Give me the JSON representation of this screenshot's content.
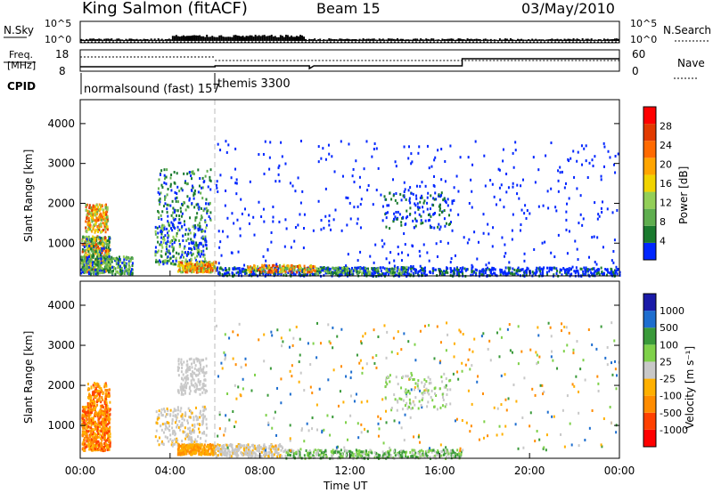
{
  "header": {
    "station": "King Salmon (fitACF)",
    "beam": "Beam 15",
    "date": "03/May/2010"
  },
  "top_panels": {
    "nsky_label": "N.Sky",
    "nsky_ticks": [
      "10^5",
      "10^0"
    ],
    "nsearch_label": "N.Search",
    "freq_label_1": "Freq.",
    "freq_label_2": "[MHz]",
    "freq_ticks": [
      "18",
      "8"
    ],
    "nave_label": "Nave",
    "nave_ticks": [
      "60",
      "0"
    ],
    "cpid_label": "CPID",
    "cpid_segments": [
      {
        "name": "normalsound (fast) 157",
        "start_hour": 0,
        "end_hour": 6
      },
      {
        "name": "themis 3300",
        "start_hour": 6,
        "end_hour": 24
      }
    ]
  },
  "colors": {
    "power_scale": [
      "#0026ff",
      "#1a7a2e",
      "#5fae4f",
      "#93cf58",
      "#f1d300",
      "#ffa500",
      "#ff6a00",
      "#e23a00",
      "#ff0000"
    ],
    "velocity_scale": [
      "#ff0000",
      "#ff4000",
      "#ff8c00",
      "#ffb000",
      "#c8c8c8",
      "#7fd14a",
      "#3a9a3a",
      "#1e6ecf",
      "#1a1aa8"
    ],
    "background_ground_scatter": "#ffffff"
  },
  "chart_data": [
    {
      "type": "heatmap",
      "name": "power",
      "ylabel": "Slant Range [km]",
      "ylim": [
        180,
        4600
      ],
      "y_ticks": [
        1000,
        2000,
        3000,
        4000
      ],
      "x_ticks_hours": [
        0,
        4,
        8,
        12,
        16,
        20,
        24
      ],
      "colorbar_label": "Power [dB]",
      "colorbar_ticks": [
        "4",
        "8",
        "12",
        "16",
        "20",
        "24",
        "28"
      ],
      "colorbar_range": [
        0,
        30
      ]
    },
    {
      "type": "heatmap",
      "name": "velocity",
      "ylabel": "Slant Range [km]",
      "ylim": [
        180,
        4600
      ],
      "y_ticks": [
        1000,
        2000,
        3000,
        4000
      ],
      "x_ticks_hours": [
        0,
        4,
        8,
        12,
        16,
        20,
        24
      ],
      "x_tick_labels": [
        "00:00",
        "04:00",
        "08:00",
        "12:00",
        "16:00",
        "20:00",
        "00:00"
      ],
      "xlabel": "Time UT",
      "colorbar_label": "Velocity [m s⁻¹]",
      "colorbar_ticks": [
        "1000",
        "500",
        "100",
        "25",
        "-25",
        "-100",
        "-500",
        "-1000"
      ]
    }
  ]
}
